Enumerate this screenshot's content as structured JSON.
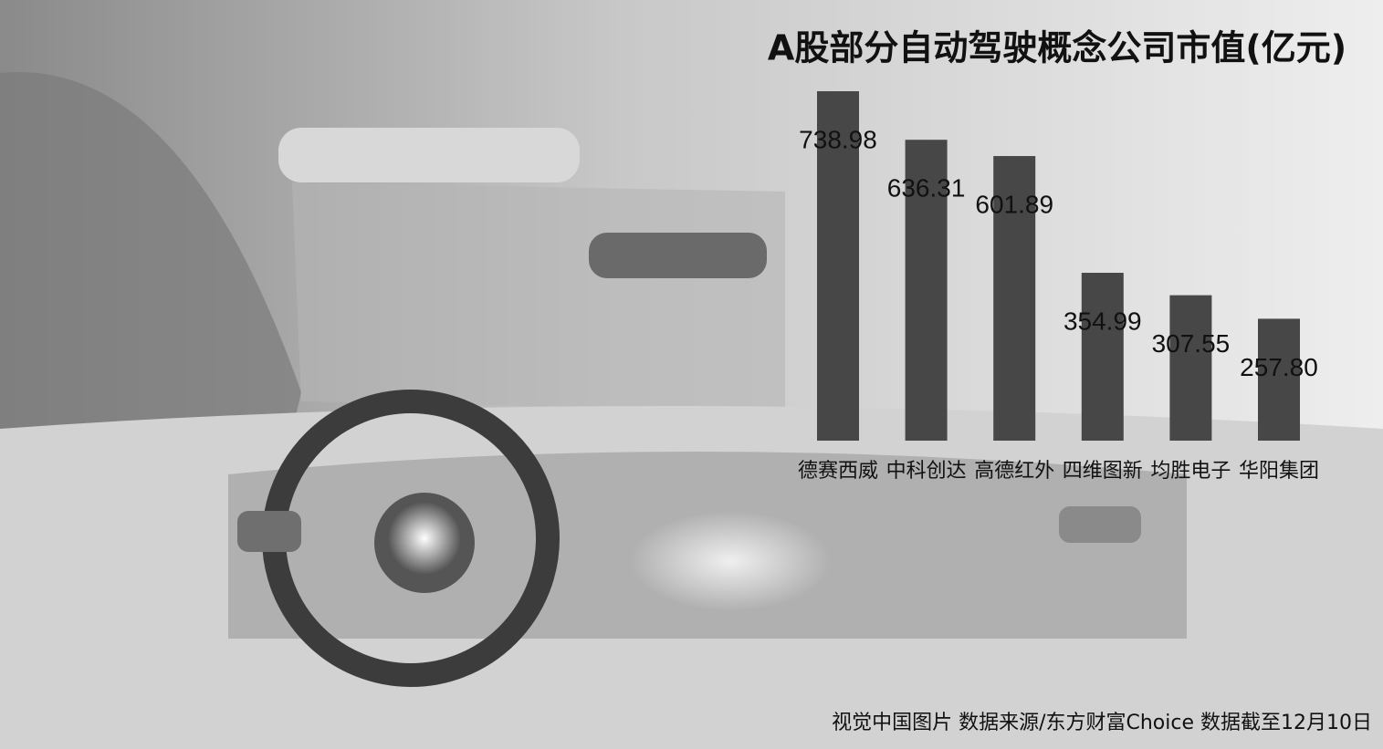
{
  "chart_data": {
    "type": "bar",
    "title": "A股部分自动驾驶概念公司市值(亿元)",
    "categories": [
      "德赛西威",
      "中科创达",
      "高德红外",
      "四维图新",
      "均胜电子",
      "华阳集团"
    ],
    "values": [
      738.98,
      636.31,
      601.89,
      354.99,
      307.55,
      257.8
    ],
    "value_labels": [
      "738.98",
      "636.31",
      "601.89",
      "354.99",
      "307.55",
      "257.80"
    ],
    "color": "#474747",
    "footnote": "视觉中国图片  数据来源/东方财富Choice  数据截至12月10日"
  }
}
